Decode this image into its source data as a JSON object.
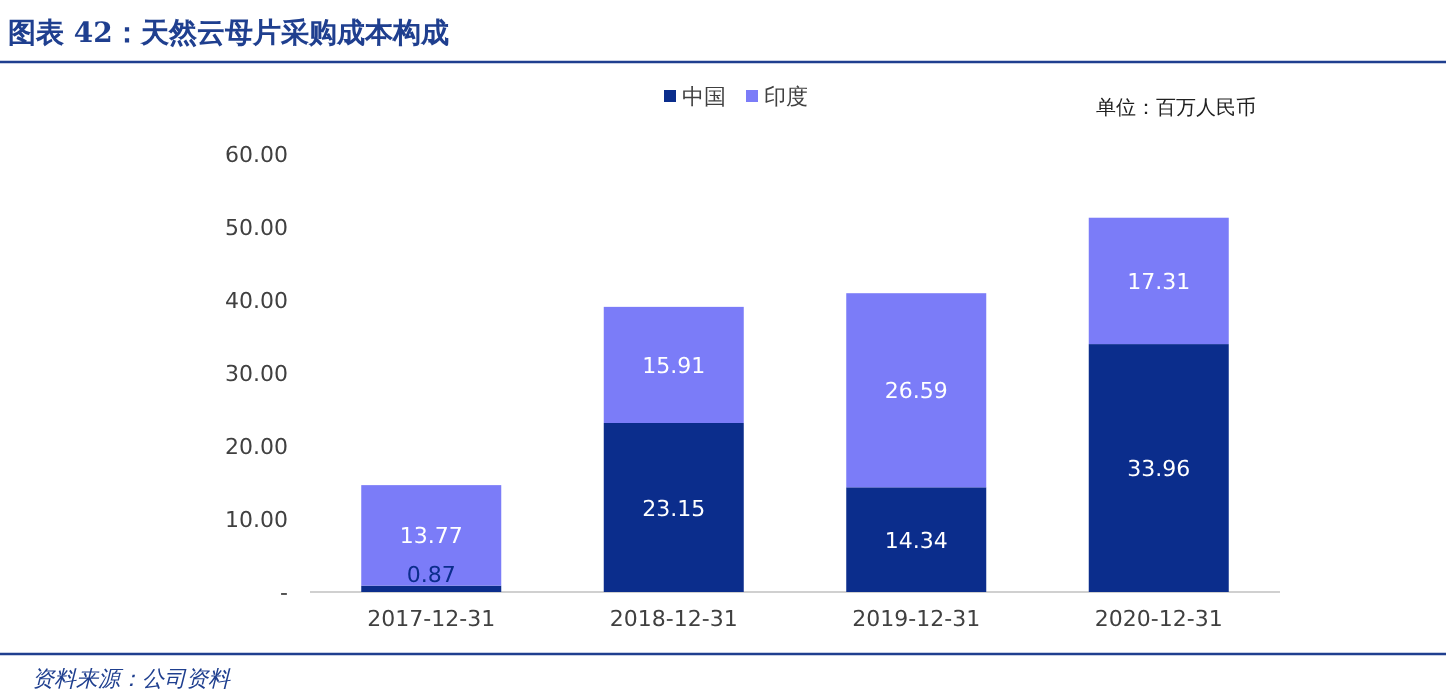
{
  "chart_data": {
    "type": "bar",
    "title": "图表 42：天然云母片采购成本构成",
    "annotations": [
      "单位：百万人民币",
      "资料来源：公司资料"
    ],
    "categories": [
      "2017-12-31",
      "2018-12-31",
      "2019-12-31",
      "2020-12-31"
    ],
    "series": [
      {
        "name": "中国",
        "color": "#0b2d8c",
        "values": [
          0.87,
          23.15,
          14.34,
          33.96
        ]
      },
      {
        "name": "印度",
        "color": "#7b7cf8",
        "values": [
          13.77,
          15.91,
          26.59,
          17.31
        ]
      }
    ],
    "stacked": true,
    "data_labels": true,
    "legend": "top",
    "grid": false,
    "ylim": [
      0,
      60
    ],
    "yticks": [
      {
        "value": 0,
        "label": "-"
      },
      {
        "value": 10,
        "label": "10.00"
      },
      {
        "value": 20,
        "label": "20.00"
      },
      {
        "value": 30,
        "label": "30.00"
      },
      {
        "value": 40,
        "label": "40.00"
      },
      {
        "value": 50,
        "label": "50.00"
      },
      {
        "value": 60,
        "label": "60.00"
      }
    ]
  }
}
